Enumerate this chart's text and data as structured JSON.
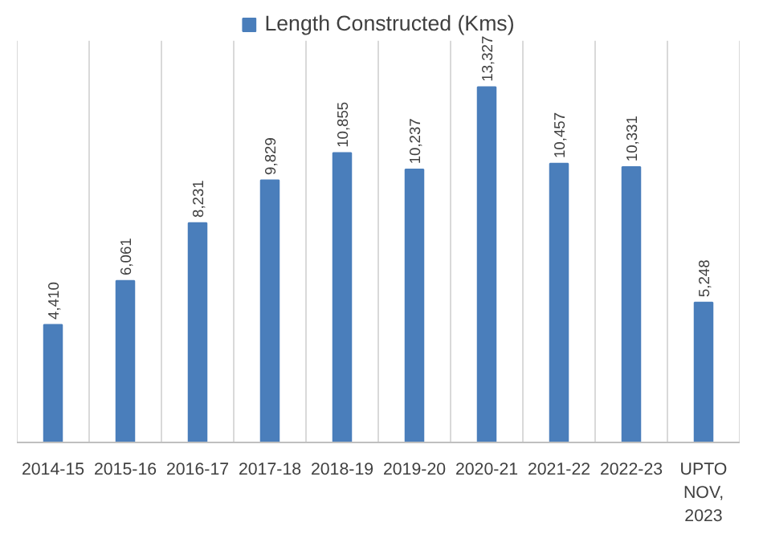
{
  "chart_data": {
    "type": "bar",
    "categories": [
      "2014-15",
      "2015-16",
      "2016-17",
      "2017-18",
      "2018-19",
      "2019-20",
      "2020-21",
      "2021-22",
      "2022-23",
      "UPTO NOV, 2023"
    ],
    "series": [
      {
        "name": "Length Constructed (Kms)",
        "color": "#4a7ebb",
        "values": [
          4410,
          6061,
          8231,
          9829,
          10855,
          10237,
          13327,
          10457,
          10331,
          5248
        ],
        "value_labels": [
          "4,410",
          "6,061",
          "8,231",
          "9,829",
          "10,855",
          "10,237",
          "13,327",
          "10,457",
          "10,331",
          "5,248"
        ]
      }
    ],
    "grid": "x",
    "legend": "top"
  }
}
